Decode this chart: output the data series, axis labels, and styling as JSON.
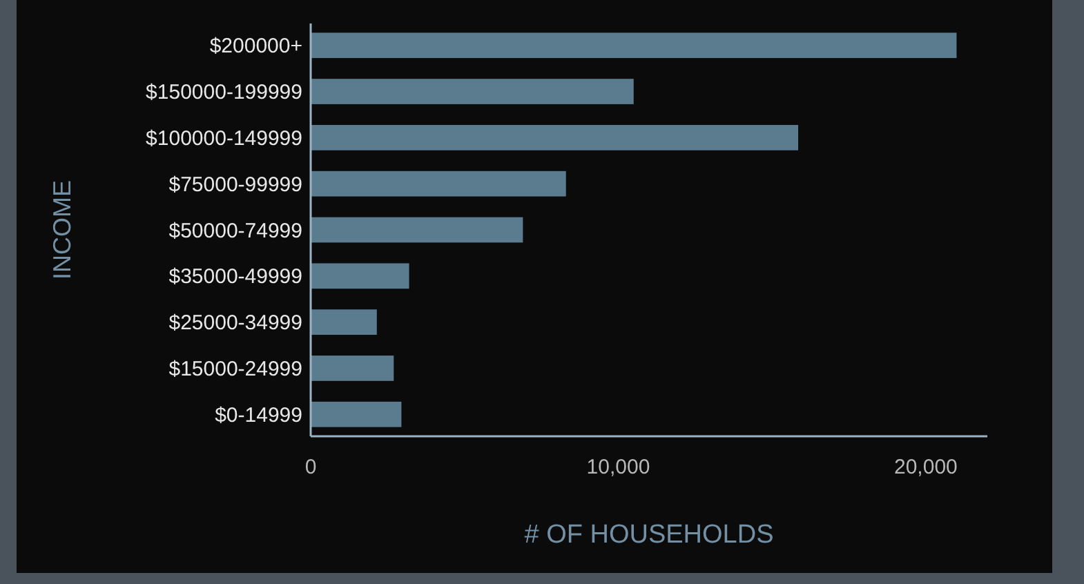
{
  "chart_data": {
    "type": "bar",
    "orientation": "horizontal",
    "xlabel": "# OF HOUSEHOLDS",
    "ylabel": "INCOME",
    "categories": [
      "$200000+",
      "$150000-199999",
      "$100000-149999",
      "$75000-99999",
      "$50000-74999",
      "$35000-49999",
      "$25000-34999",
      "$15000-24999",
      "$0-14999"
    ],
    "values": [
      21000,
      10500,
      15850,
      8300,
      6900,
      3200,
      2150,
      2700,
      2950
    ],
    "color": "#5b7b8f",
    "xlim": [
      0,
      22000
    ],
    "xticks": [
      0,
      {
        "value": 10000,
        "label": "10,000"
      },
      {
        "value": 20000,
        "label": "20,000"
      }
    ],
    "grid": false
  }
}
